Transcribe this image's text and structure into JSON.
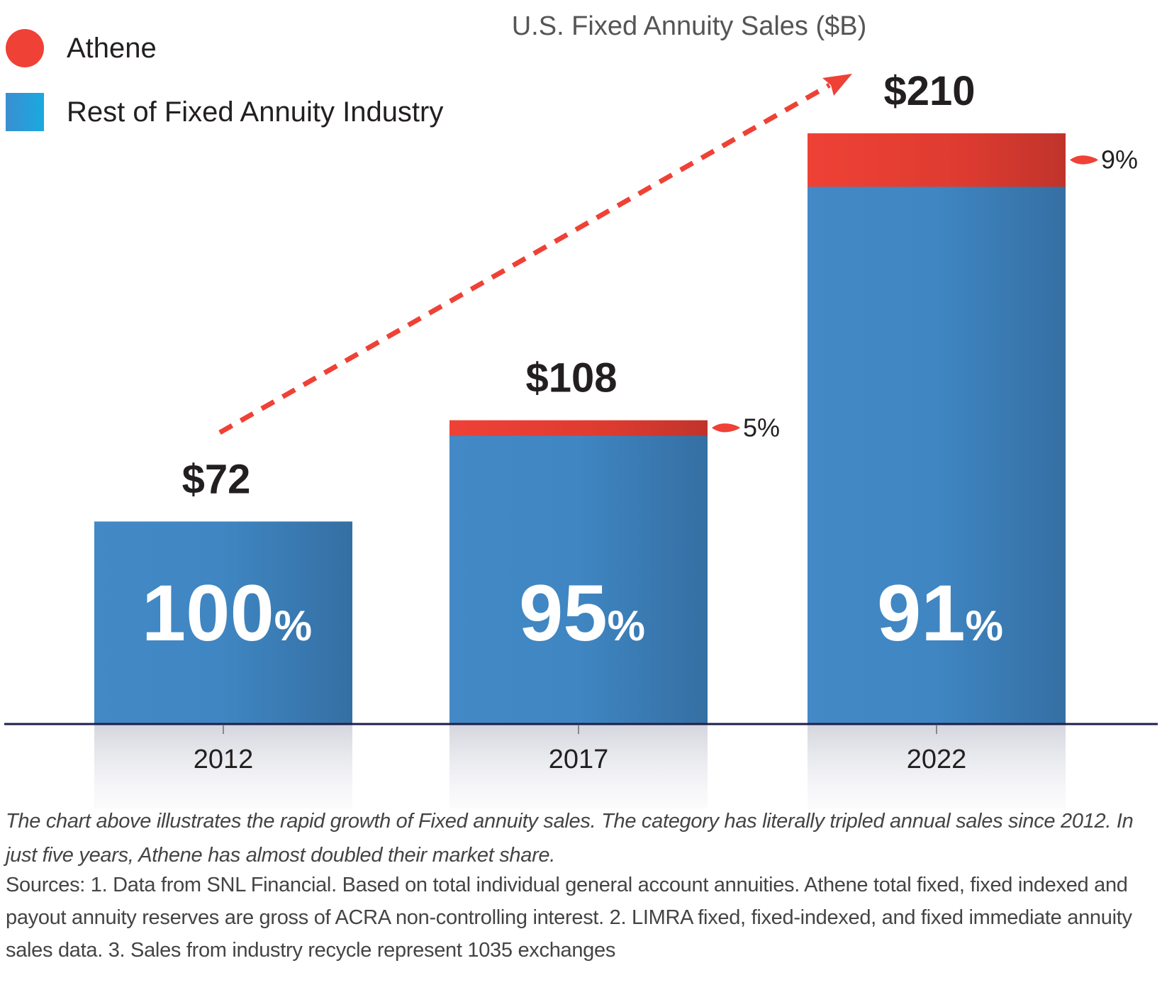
{
  "legend": {
    "athene_label": "Athene",
    "rest_label": "Rest of Fixed Annuity Industry"
  },
  "colors": {
    "athene": "#ef4136",
    "rest": "#3f87c4",
    "axis": "#1c1f4a"
  },
  "chart_data": {
    "type": "bar",
    "stacked": true,
    "title": "U.S. Fixed Annuity Sales ($B)",
    "categories": [
      "2012",
      "2017",
      "2022"
    ],
    "totals": [
      72,
      108,
      210
    ],
    "total_labels": [
      "$72",
      "$108",
      "$210"
    ],
    "series": [
      {
        "name": "Rest of Fixed Annuity Industry",
        "share_pct": [
          100,
          95,
          91
        ],
        "values": [
          72,
          102.6,
          191.1
        ]
      },
      {
        "name": "Athene",
        "share_pct": [
          0,
          5,
          9
        ],
        "values": [
          0,
          5.4,
          18.9
        ]
      }
    ],
    "share_labels": [
      {
        "number": "100",
        "unit": "%"
      },
      {
        "number": "95",
        "unit": "%"
      },
      {
        "number": "91",
        "unit": "%"
      }
    ],
    "athene_labels": [
      "",
      "5%",
      "9%"
    ],
    "trend_arrow": "dashed arrow from 2012 to 2022",
    "xlabel": "",
    "ylabel": "",
    "ylim": [
      0,
      210
    ]
  },
  "caption": "The chart above illustrates the rapid growth of Fixed annuity sales. The category has literally tripled annual sales since 2012. In just five years, Athene has almost doubled their market share.",
  "sources": "Sources: 1. Data from SNL Financial. Based on total individual general account annuities. Athene total fixed, fixed indexed and payout annuity reserves are gross of ACRA non-controlling interest. 2. LIMRA fixed, fixed-indexed, and fixed immediate annuity sales data. 3. Sales from industry recycle represent 1035 exchanges"
}
